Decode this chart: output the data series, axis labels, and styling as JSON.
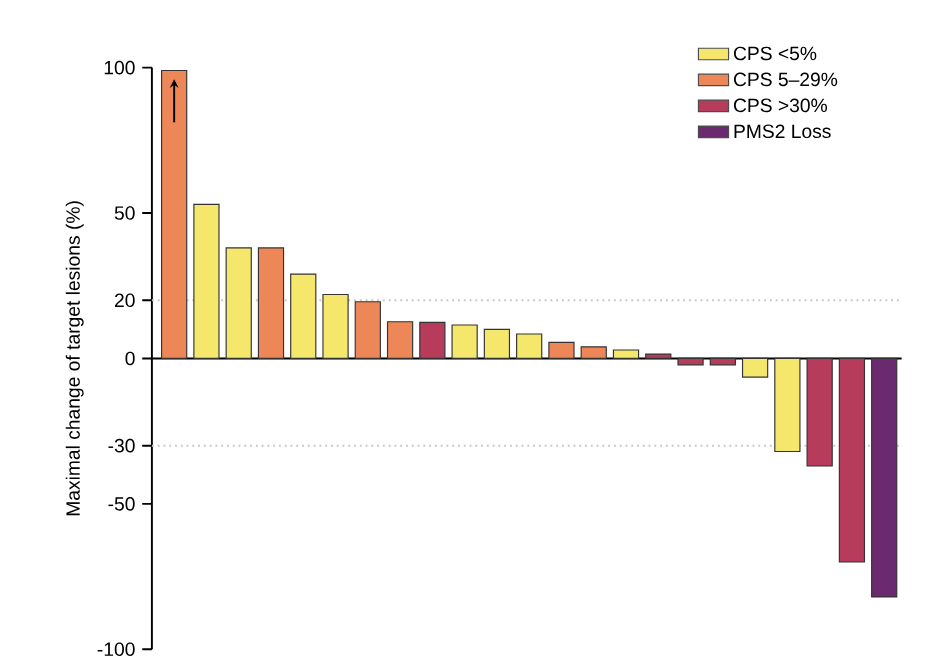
{
  "chart_data": {
    "type": "bar",
    "ylabel": "Maximal change of target lesions (%)",
    "categories": [
      null,
      null,
      null,
      null,
      null,
      null,
      null,
      null,
      null,
      null,
      null,
      null,
      null,
      null,
      null,
      null,
      null,
      null,
      null,
      null,
      null,
      null,
      null
    ],
    "series": [
      {
        "name": "CPS <5%",
        "color": "#f5e66c",
        "values": [
          null,
          53,
          38,
          null,
          29,
          22,
          null,
          null,
          null,
          11.5,
          10,
          8.4,
          null,
          null,
          2.9,
          null,
          null,
          null,
          -6.4,
          -32,
          null,
          null,
          null
        ]
      },
      {
        "name": "CPS 5–29%",
        "color": "#ee8757",
        "values": [
          99,
          null,
          null,
          38,
          null,
          null,
          19.5,
          12.6,
          null,
          null,
          null,
          null,
          5.5,
          4,
          null,
          null,
          null,
          null,
          null,
          null,
          null,
          null,
          null
        ]
      },
      {
        "name": "CPS >30%",
        "color": "#b73b5b",
        "values": [
          null,
          null,
          null,
          null,
          null,
          null,
          null,
          null,
          12.4,
          null,
          null,
          null,
          null,
          null,
          null,
          1.5,
          -2.2,
          -2.2,
          null,
          null,
          -37,
          -70,
          null
        ]
      },
      {
        "name": "PMS2 Loss",
        "color": "#6b2a6f",
        "values": [
          null,
          null,
          null,
          null,
          null,
          null,
          null,
          null,
          null,
          null,
          null,
          null,
          null,
          null,
          null,
          null,
          null,
          null,
          null,
          null,
          null,
          null,
          -82
        ]
      }
    ],
    "ylim": [
      -100,
      100
    ],
    "yticks": [
      -100,
      -50,
      -30,
      0,
      20,
      50,
      100
    ],
    "ref_lines": [
      {
        "axis": "y",
        "value": 20,
        "color": "#c8c8c8",
        "line_style": "dotted"
      },
      {
        "axis": "y",
        "value": -30,
        "color": "#c8c8c8",
        "line_style": "dotted"
      }
    ],
    "legend": "top right"
  }
}
